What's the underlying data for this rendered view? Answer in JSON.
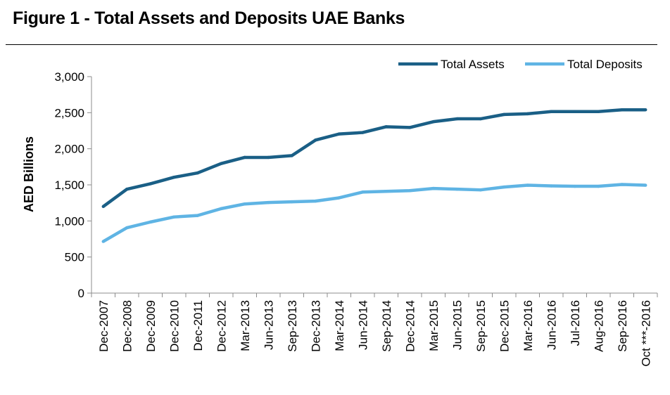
{
  "figure_title": "Figure 1 - Total Assets and Deposits UAE Banks",
  "colors": {
    "total_assets": "#1a5f86",
    "total_deposits": "#5fb4e4",
    "axis": "#8c8c8c"
  },
  "chart_data": {
    "type": "line",
    "title": "",
    "xlabel": "",
    "ylabel": "AED Billions",
    "ylim": [
      0,
      3000
    ],
    "yticks": [
      0,
      500,
      1000,
      1500,
      2000,
      2500,
      3000
    ],
    "ytick_labels": [
      "0",
      "500",
      "1,000",
      "1,500",
      "2,000",
      "2,500",
      "3,000"
    ],
    "grid": false,
    "legend_position": "top-right",
    "categories": [
      "Dec-2007",
      "Dec-2008",
      "Dec-2009",
      "Dec-2010",
      "Dec-2011",
      "Dec-2012",
      "Mar-2013",
      "Jun-2013",
      "Sep-2013",
      "Dec-2013",
      "Mar-2014",
      "Jun-2014",
      "Sep-2014",
      "Dec-2014",
      "Mar-2015",
      "Jun-2015",
      "Sep-2015",
      "Dec-2015",
      "Mar-2016",
      "Jun-2016",
      "Jul-2016",
      "Aug-2016",
      "Sep-2016",
      "Oct ***-2016"
    ],
    "series": [
      {
        "name": "Total Assets",
        "values": [
          1200,
          1440,
          1515,
          1605,
          1665,
          1795,
          1880,
          1880,
          1905,
          2120,
          2205,
          2225,
          2305,
          2295,
          2375,
          2415,
          2415,
          2475,
          2485,
          2515,
          2515,
          2515,
          2540,
          2540
        ]
      },
      {
        "name": "Total Deposits",
        "values": [
          715,
          905,
          985,
          1055,
          1075,
          1170,
          1235,
          1255,
          1265,
          1275,
          1320,
          1400,
          1410,
          1420,
          1450,
          1440,
          1430,
          1470,
          1495,
          1485,
          1480,
          1480,
          1505,
          1495
        ]
      }
    ]
  }
}
